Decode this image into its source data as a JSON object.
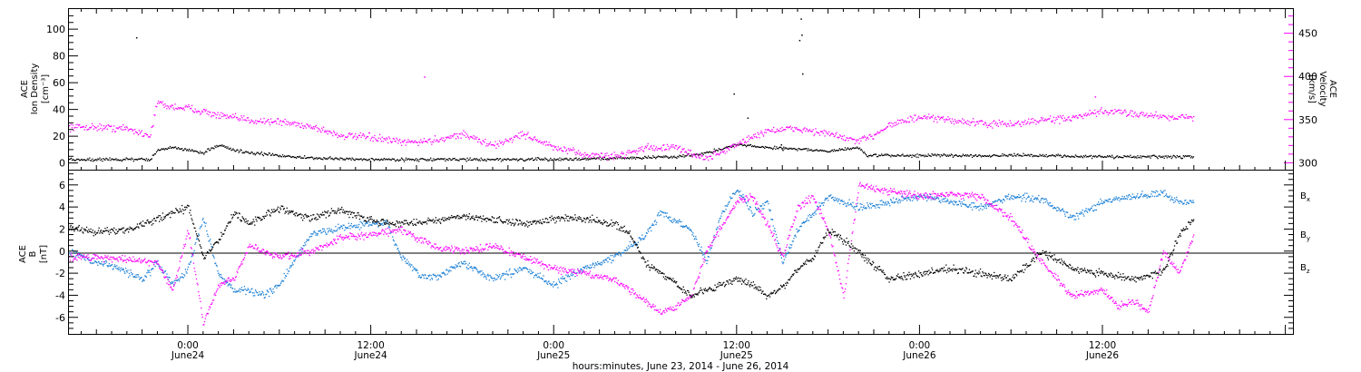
{
  "chart_data": [
    {
      "type": "scatter",
      "panel": "top",
      "xlabel": "hours:minutes, June 23, 2014 - June 26, 2014",
      "x_ticks": [
        {
          "t": 24,
          "line1": "0:00",
          "line2": "June24"
        },
        {
          "t": 36,
          "line1": "12:00",
          "line2": "June24"
        },
        {
          "t": 48,
          "line1": "0:00",
          "line2": "June25"
        },
        {
          "t": 60,
          "line1": "12:00",
          "line2": "June25"
        },
        {
          "t": 72,
          "line1": "0:00",
          "line2": "June26"
        },
        {
          "t": 84,
          "line1": "12:00",
          "line2": "June26"
        }
      ],
      "xlim_hours_from_jun23": [
        16.2,
        96.5
      ],
      "data_end_hours": 90.0,
      "y_left": {
        "label_lines": [
          "ACE",
          "Ion Density",
          "[cm⁻³]"
        ],
        "ylim": [
          -5,
          115
        ],
        "ticks": [
          0,
          20,
          40,
          60,
          80,
          100
        ],
        "color": "#000000"
      },
      "y_right": {
        "label_lines": [
          "ACE",
          "Velocity",
          "[km/s]"
        ],
        "ylim": [
          292,
          478
        ],
        "ticks": [
          300,
          350,
          400,
          450
        ],
        "color": "#ff00ff"
      },
      "series": [
        {
          "axis": "left",
          "color": "#000000",
          "x": [
            16.2,
            20,
            21.5,
            22,
            23,
            24,
            25,
            26,
            27,
            28,
            30,
            32,
            36,
            40,
            44,
            48,
            52,
            56,
            58,
            60,
            62,
            64,
            66,
            68,
            68.5,
            72,
            76,
            80,
            84,
            88,
            90
          ],
          "values": [
            3,
            3,
            3,
            10,
            12,
            10,
            8,
            14,
            10,
            8,
            6,
            4,
            3,
            3,
            3,
            3,
            4,
            5,
            8,
            14,
            12,
            11,
            9,
            12,
            6,
            6,
            6,
            6,
            5,
            5,
            5
          ]
        },
        {
          "axis": "right",
          "color": "#ff00ff",
          "x": [
            16.2,
            18,
            20,
            21.5,
            22,
            22.5,
            24,
            25,
            26,
            28,
            30,
            32,
            34,
            36,
            38,
            40,
            42,
            44,
            46,
            48,
            50,
            52,
            54,
            56,
            58,
            60,
            62,
            64,
            66,
            68,
            69,
            70,
            72,
            74,
            76,
            78,
            80,
            82,
            84,
            86,
            88,
            89,
            90
          ],
          "values": [
            342,
            342,
            340,
            332,
            372,
            366,
            364,
            360,
            355,
            350,
            348,
            343,
            332,
            330,
            324,
            326,
            334,
            320,
            334,
            318,
            310,
            308,
            318,
            318,
            305,
            322,
            338,
            340,
            334,
            325,
            333,
            345,
            353,
            350,
            346,
            345,
            350,
            352,
            360,
            358,
            354,
            354,
            352
          ]
        }
      ],
      "outliers": [
        {
          "x": 20.6,
          "y": 94
        },
        {
          "x": 64.1,
          "y": 92
        },
        {
          "x": 64.2,
          "y": 108
        },
        {
          "x": 64.25,
          "y": 96
        },
        {
          "x": 63.0,
          "y": 10
        },
        {
          "x": 62.9,
          "y": 14
        },
        {
          "x": 64.3,
          "y": 67
        },
        {
          "x": 59.8,
          "y": 52
        },
        {
          "x": 60.7,
          "y": 34
        }
      ],
      "outliers_right": [
        {
          "x": 39.5,
          "y": 400
        },
        {
          "x": 83.5,
          "y": 377
        }
      ]
    },
    {
      "type": "scatter",
      "panel": "bottom",
      "y": {
        "label_lines": [
          "ACE",
          "B",
          "[nT]"
        ],
        "ylim": [
          -7.5,
          7.3
        ],
        "ticks": [
          -6,
          -4,
          -2,
          0,
          2,
          4,
          6
        ]
      },
      "legend_placement": "right",
      "series": [
        {
          "name": "B",
          "subscript": "x",
          "color": "#000000",
          "x": [
            16.2,
            18,
            20,
            22,
            23,
            24,
            25,
            26,
            27,
            28,
            30,
            32,
            34,
            36,
            38,
            40,
            42,
            44,
            46,
            48,
            50,
            52,
            53,
            54,
            55,
            56,
            57,
            58,
            60,
            61,
            62,
            63,
            64,
            65,
            66,
            68,
            70,
            72,
            74,
            76,
            78,
            80,
            82,
            84,
            86,
            88,
            89,
            90
          ],
          "values": [
            2.2,
            1.8,
            2.0,
            3.0,
            3.5,
            4.0,
            -0.5,
            1.0,
            3.5,
            2.5,
            4.0,
            3.0,
            3.8,
            2.8,
            2.5,
            2.8,
            3.2,
            2.9,
            2.5,
            3.0,
            3.0,
            2.5,
            1.5,
            -1.0,
            -2.0,
            -3.0,
            -4.0,
            -3.5,
            -2.5,
            -3.0,
            -4.0,
            -3.2,
            -1.5,
            -0.5,
            2.0,
            0.0,
            -2.5,
            -2.0,
            -1.5,
            -2.0,
            -2.5,
            0.0,
            -1.5,
            -2.0,
            -2.5,
            -1.8,
            1.5,
            3.0
          ]
        },
        {
          "name": "B",
          "subscript": "y",
          "color": "#1a7fd6",
          "x": [
            16.2,
            18,
            19.5,
            21,
            22,
            23,
            24,
            25,
            26,
            27,
            28,
            29,
            30,
            32,
            34,
            36,
            37,
            38,
            39,
            40,
            42,
            44,
            46,
            48,
            50,
            52,
            54,
            55,
            56,
            57,
            58,
            59,
            60,
            61,
            62,
            63,
            64,
            66,
            68,
            70,
            72,
            74,
            76,
            78,
            80,
            82,
            84,
            86,
            88,
            89,
            90
          ],
          "values": [
            0.0,
            -1.0,
            -1.5,
            -2.5,
            -1.0,
            -3.0,
            -1.5,
            3.0,
            -2.0,
            -3.5,
            -3.5,
            -4.0,
            -3.0,
            1.5,
            2.2,
            2.5,
            2.6,
            -0.5,
            -2.0,
            -2.5,
            -1.0,
            -2.5,
            -1.5,
            -3.0,
            -1.5,
            -0.5,
            1.5,
            3.5,
            2.8,
            2.0,
            -1.0,
            3.5,
            5.8,
            3.5,
            4.5,
            -1.0,
            2.0,
            5.0,
            4.0,
            4.5,
            5.0,
            4.5,
            4.0,
            5.0,
            4.8,
            3.0,
            4.5,
            5.0,
            5.3,
            4.5,
            4.5
          ]
        },
        {
          "name": "B",
          "subscript": "z",
          "color": "#ff00ff",
          "x": [
            16.2,
            18,
            20,
            22,
            23,
            24,
            25,
            26,
            27,
            28,
            30,
            32,
            34,
            36,
            38,
            40,
            42,
            44,
            46,
            48,
            50,
            52,
            54,
            55,
            56,
            57,
            58,
            60,
            61,
            62,
            63,
            64,
            65,
            66,
            67,
            68,
            70,
            72,
            74,
            76,
            78,
            80,
            82,
            84,
            85,
            86,
            87,
            88,
            89,
            90
          ],
          "values": [
            -0.5,
            -0.5,
            -0.7,
            -1.0,
            -3.5,
            2.0,
            -6.5,
            -3.0,
            -2.5,
            0.5,
            -0.5,
            0.0,
            1.2,
            1.5,
            2.0,
            0.5,
            0.0,
            0.5,
            -0.5,
            -1.5,
            -2.0,
            -2.5,
            -4.5,
            -5.5,
            -5.0,
            -4.0,
            0.0,
            4.5,
            5.0,
            2.5,
            -0.5,
            4.0,
            5.0,
            2.0,
            -4.0,
            6.0,
            5.5,
            5.0,
            5.2,
            5.0,
            3.0,
            -1.0,
            -4.0,
            -3.5,
            -5.0,
            -4.5,
            -5.5,
            0.0,
            -2.0,
            1.5
          ]
        }
      ]
    }
  ]
}
